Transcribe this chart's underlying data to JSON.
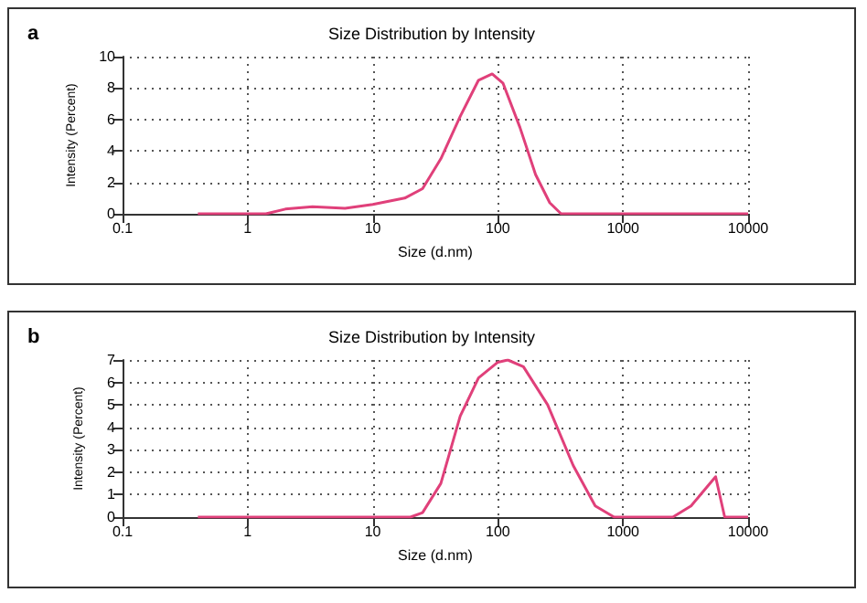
{
  "chart_data": [
    {
      "type": "line",
      "title": "Size Distribution by Intensity",
      "xlabel": "Size (d.nm)",
      "ylabel": "Intensity (Percent)",
      "annotations": [
        "a"
      ],
      "log": "x",
      "grid": true,
      "marker": "none",
      "line_style": "solid",
      "xlim": [
        0.1,
        10000
      ],
      "xticks": [
        0.1,
        1,
        10,
        100,
        1000,
        10000
      ],
      "ylim": [
        0,
        10
      ],
      "yticks": [
        0,
        2,
        4,
        6,
        8,
        10
      ],
      "series": [
        {
          "color": "#e0407a",
          "x": [
            0.4,
            1,
            1.4,
            2,
            3.3,
            6,
            10,
            18,
            25,
            35,
            50,
            70,
            90,
            110,
            150,
            200,
            260,
            320,
            1000,
            10000
          ],
          "values": [
            0,
            0,
            0,
            0.3,
            0.45,
            0.35,
            0.6,
            1.0,
            1.6,
            3.5,
            6.2,
            8.5,
            8.9,
            8.3,
            5.5,
            2.5,
            0.7,
            0,
            0,
            0
          ]
        }
      ]
    },
    {
      "type": "line",
      "title": "Size Distribution by Intensity",
      "xlabel": "Size (d.nm)",
      "ylabel": "Intensity (Percent)",
      "annotations": [
        "b"
      ],
      "log": "x",
      "grid": true,
      "marker": "none",
      "line_style": "solid",
      "xlim": [
        0.1,
        10000
      ],
      "xticks": [
        0.1,
        1,
        10,
        100,
        1000,
        10000
      ],
      "ylim": [
        0,
        7
      ],
      "yticks": [
        0,
        1,
        2,
        3,
        4,
        5,
        6,
        7
      ],
      "series": [
        {
          "color": "#e0407a",
          "x": [
            0.4,
            20,
            25,
            35,
            50,
            70,
            100,
            120,
            160,
            250,
            400,
            600,
            850,
            2500,
            3500,
            5500,
            6500,
            10000
          ],
          "values": [
            0,
            0,
            0.2,
            1.5,
            4.5,
            6.2,
            6.9,
            7.0,
            6.7,
            5.0,
            2.3,
            0.5,
            0,
            0,
            0.5,
            1.8,
            0,
            0
          ]
        }
      ]
    }
  ]
}
